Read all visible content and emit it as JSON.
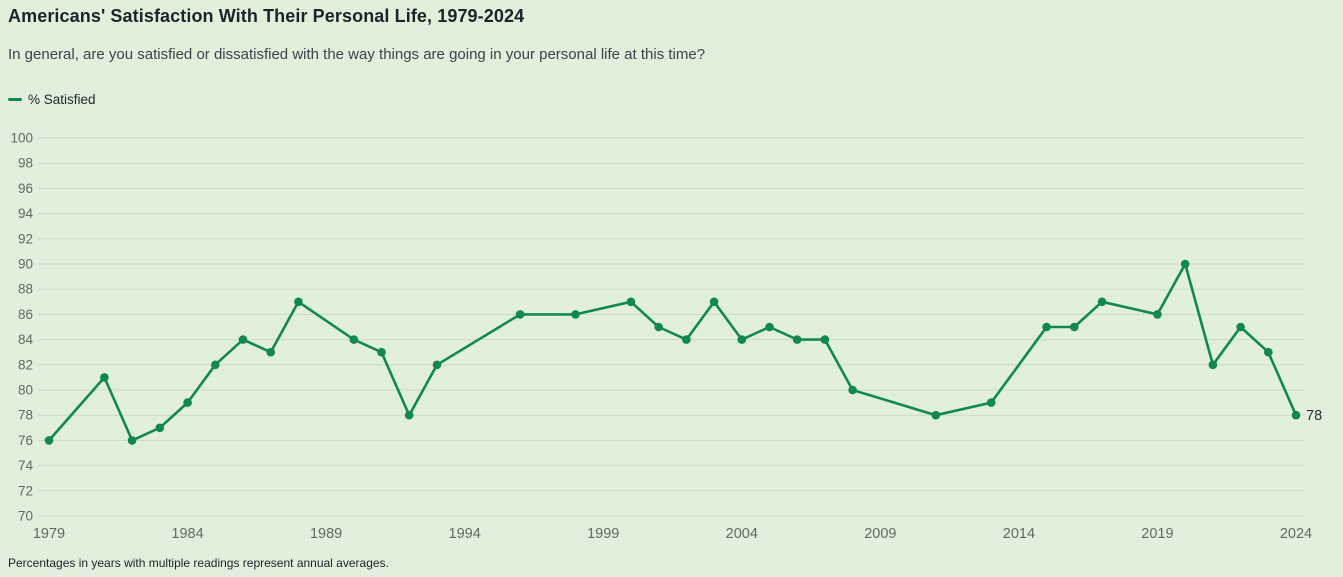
{
  "title": "Americans' Satisfaction With Their Personal Life, 1979-2024",
  "subtitle": "In general, are you satisfied or dissatisfied with the way things are going in your personal life at this time?",
  "legend": {
    "label": "% Satisfied"
  },
  "footnote": "Percentages in years with multiple readings represent annual averages.",
  "colors": {
    "background": "#e2efdc",
    "line": "#11894e",
    "grid": "#ccd9c7",
    "axis_text": "#606a62",
    "title_text": "#1e2328",
    "subtitle_text": "#3d4349",
    "end_label_text": "#2c3136"
  },
  "chart_data": {
    "type": "line",
    "title": "Americans' Satisfaction With Their Personal Life, 1979-2024",
    "xlabel": "",
    "ylabel": "",
    "x": [
      1979,
      1981,
      1982,
      1983,
      1984,
      1985,
      1986,
      1987,
      1988,
      1990,
      1991,
      1992,
      1993,
      1996,
      1998,
      2000,
      2001,
      2002,
      2003,
      2004,
      2005,
      2006,
      2007,
      2008,
      2011,
      2013,
      2015,
      2016,
      2017,
      2019,
      2020,
      2021,
      2022,
      2023,
      2024
    ],
    "series": [
      {
        "name": "% Satisfied",
        "values": [
          76,
          81,
          76,
          77,
          79,
          82,
          84,
          83,
          87,
          84,
          83,
          78,
          82,
          86,
          86,
          87,
          85,
          84,
          87,
          84,
          85,
          84,
          84,
          80,
          78,
          79,
          85,
          85,
          87,
          86,
          90,
          82,
          85,
          83,
          78
        ]
      }
    ],
    "x_ticks": [
      1979,
      1984,
      1989,
      1994,
      1999,
      2004,
      2009,
      2014,
      2019,
      2024
    ],
    "y_ticks": [
      70,
      72,
      74,
      76,
      78,
      80,
      82,
      84,
      86,
      88,
      90,
      92,
      94,
      96,
      98,
      100
    ],
    "xlim": [
      1979,
      2024
    ],
    "ylim": [
      70,
      100
    ],
    "grid": "horizontal",
    "legend_position": "top-left",
    "end_label": "78"
  }
}
